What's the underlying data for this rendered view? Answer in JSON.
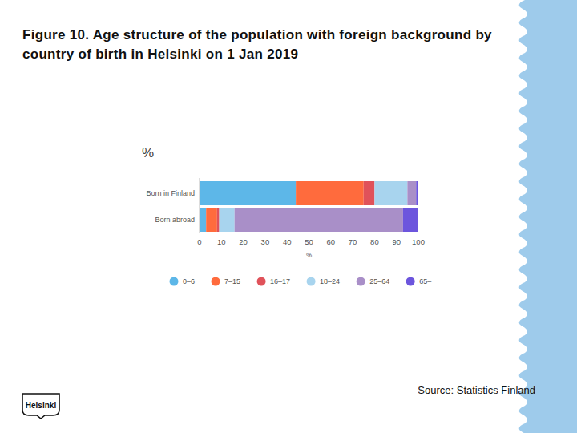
{
  "chart_data": {
    "type": "bar",
    "orientation": "horizontal",
    "stacked": true,
    "title": "Figure 10. Age structure of the population with foreign background by country of birth in Helsinki on 1 Jan 2019",
    "xlabel": "%",
    "ylabel": "%",
    "categories": [
      "Born in Finland",
      "Born abroad"
    ],
    "series": [
      {
        "name": "0–6",
        "color": "#5db7e8",
        "values": [
          44,
          3
        ]
      },
      {
        "name": "7–15",
        "color": "#ff6b3d",
        "values": [
          31,
          5
        ]
      },
      {
        "name": "16–17",
        "color": "#e0525a",
        "values": [
          5,
          1
        ]
      },
      {
        "name": "18–24",
        "color": "#a8d4ee",
        "values": [
          15,
          7
        ]
      },
      {
        "name": "25–64",
        "color": "#a98fc8",
        "values": [
          4,
          77
        ]
      },
      {
        "name": "65–",
        "color": "#6c55dd",
        "values": [
          1,
          7
        ]
      }
    ],
    "xlim": [
      0,
      100
    ],
    "xticks": [
      0,
      10,
      20,
      30,
      40,
      50,
      60,
      70,
      80,
      90,
      100
    ],
    "grid": false,
    "legend": "bottom"
  },
  "source": "Source: Statistics Finland",
  "logo": "Helsinki"
}
